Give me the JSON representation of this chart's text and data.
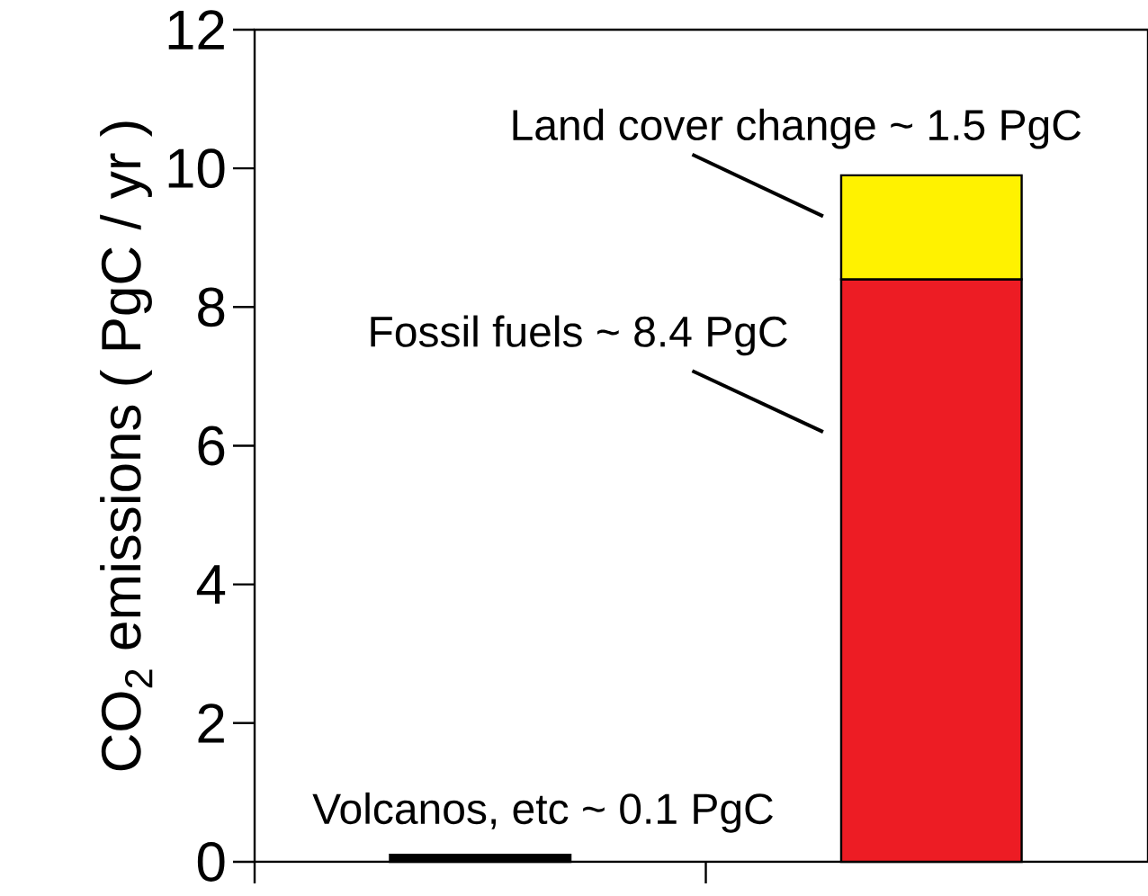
{
  "chart_data": {
    "type": "bar",
    "stacked": true,
    "ylabel": "CO$_{2}$ emissions ( PgC / yr )",
    "categories": [
      null,
      null
    ],
    "series": [
      {
        "colors": [
          "#000000",
          "#ed1c24"
        ],
        "values": [
          0.1,
          8.4
        ]
      },
      {
        "color": "#fff200",
        "values": [
          null,
          1.5
        ]
      }
    ],
    "ylim": [
      0,
      12
    ],
    "yticks": [
      0,
      2,
      4,
      6,
      8,
      10,
      12
    ],
    "annotations": [
      "Land cover change ~ 1.5 PgC",
      "Fossil fuels ~ 8.4 PgC",
      "Volcanos, etc ~ 0.1 PgC"
    ]
  }
}
